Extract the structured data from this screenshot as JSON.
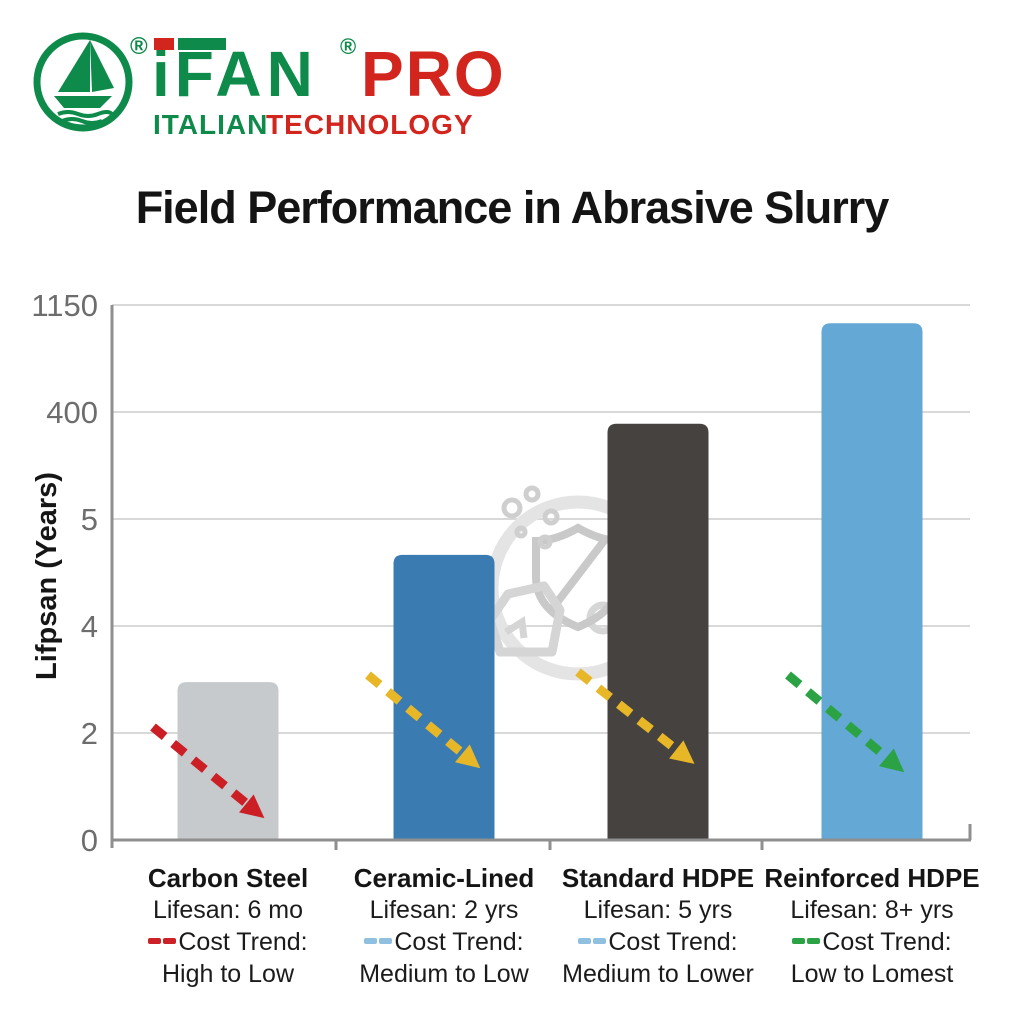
{
  "header": {
    "brand_green": "iFAN",
    "brand_red": "PRO",
    "registered_mark": "®",
    "tagline_green": "ITALIAN",
    "tagline_red": "TECHNOLOGY",
    "brand_green_color": "#0e8a4a",
    "brand_red_color": "#d2251e"
  },
  "title": "Field Performance in Abrasive Slurry",
  "chart_data": {
    "type": "bar",
    "title": "Field Performance in Abrasive Slurry",
    "xlabel": "",
    "ylabel": "Lifpsan (Years)",
    "y_tick_labels": [
      "1150",
      "400",
      "5",
      "4",
      "2",
      "0"
    ],
    "grid": true,
    "legend_position": "none",
    "categories": [
      "Carbon Steel",
      "Ceramic-Lined",
      "Standard HDPE",
      "Reinforced HDPE"
    ],
    "lifespans_years": [
      0.5,
      2,
      5,
      8
    ],
    "bar_height_fraction": [
      0.295,
      0.533,
      0.778,
      0.966
    ],
    "bar_colors": [
      "#c6cacd",
      "#3a7cb2",
      "#454240",
      "#64a8d5"
    ],
    "axis_color": "#8f8f8f",
    "grid_color": "#d9d9d9",
    "tick_label_color": "#6d6d6d",
    "watermark": "shield-magnifier-rocks",
    "columns": [
      {
        "name": "Carbon Steel",
        "lifespan": "Lifesan: 6 mo",
        "trend_label": "Cost Trend:",
        "trend_value": "High to Low",
        "dash_color": "#cb2127",
        "arrow_color": "#cb1f25"
      },
      {
        "name": "Ceramic-Lined",
        "lifespan": "Lifesan: 2 yrs",
        "trend_label": "Cost Trend:",
        "trend_value": "Medium to Low",
        "dash_color": "#8fc0e0",
        "arrow_color": "#e7b727"
      },
      {
        "name": "Standard HDPE",
        "lifespan": "Lifesan: 5 yrs",
        "trend_label": "Cost Trend:",
        "trend_value": "Medium to Lower",
        "dash_color": "#8fc0e0",
        "arrow_color": "#e7b727"
      },
      {
        "name": "Reinforced HDPE",
        "lifespan": "Lifesan: 8+ yrs",
        "trend_label": "Cost Trend:",
        "trend_value": "Low to Lomest",
        "dash_color": "#2ba344",
        "arrow_color": "#2ba344"
      }
    ]
  }
}
